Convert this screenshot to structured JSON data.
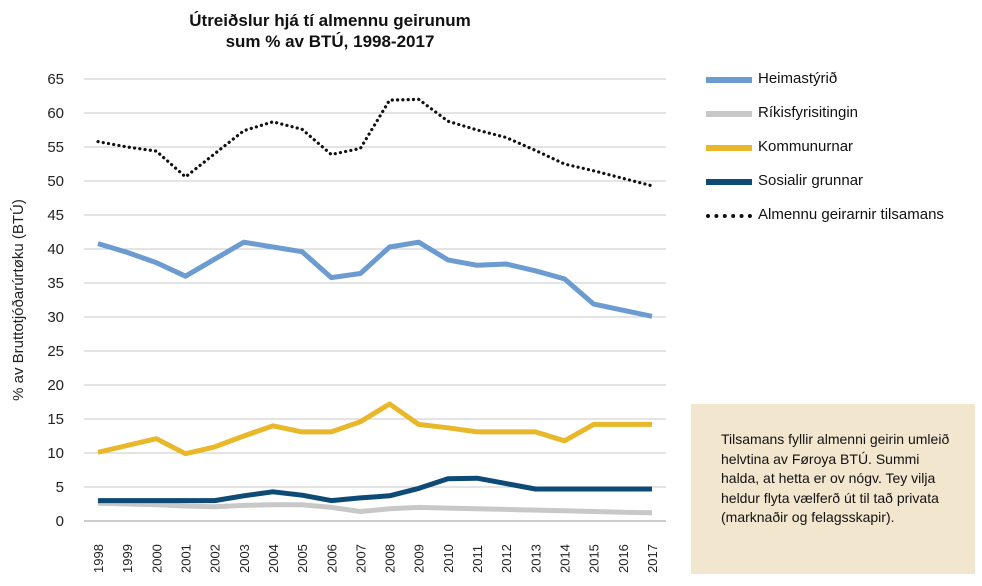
{
  "chart_data": {
    "type": "line",
    "title_lines": [
      "Útreiðslur hjá tí almennu geirunum",
      "sum % av BTÚ, 1998-2017"
    ],
    "ylabel": "% av Bruttotjóðarúrtøku (BTÚ)",
    "xlabel": "",
    "ylim": [
      0,
      65
    ],
    "yticks": [
      0,
      5,
      10,
      15,
      20,
      25,
      30,
      35,
      40,
      45,
      50,
      55,
      60,
      65
    ],
    "grid": "horizontal",
    "legend_position": "right",
    "x": [
      "1998",
      "1999",
      "2000",
      "2001",
      "2002",
      "2003",
      "2004",
      "2005",
      "2006",
      "2007",
      "2008",
      "2009",
      "2010",
      "2011",
      "2012",
      "2013",
      "2014",
      "2015",
      "2016",
      "2017"
    ],
    "series": [
      {
        "name": "Heimastýrið",
        "color": "#6b9bd1",
        "style": "solid",
        "values": [
          40.8,
          39.5,
          38.0,
          36.0,
          38.5,
          41.0,
          40.3,
          39.6,
          35.8,
          36.4,
          40.3,
          41.0,
          38.4,
          37.6,
          37.8,
          36.8,
          35.6,
          31.9,
          31.0,
          30.1
        ]
      },
      {
        "name": "Ríkisfyrisitingin",
        "color": "#c8c8c8",
        "style": "solid",
        "values": [
          2.6,
          2.5,
          2.4,
          2.2,
          2.1,
          2.3,
          2.4,
          2.4,
          2.0,
          1.4,
          1.8,
          2.0,
          1.9,
          1.8,
          1.7,
          1.6,
          1.5,
          1.4,
          1.3,
          1.2
        ]
      },
      {
        "name": "Kommunurnar",
        "color": "#e8b82a",
        "style": "solid",
        "values": [
          10.1,
          11.1,
          12.1,
          9.9,
          10.9,
          12.5,
          14.0,
          13.1,
          13.1,
          14.6,
          17.2,
          14.2,
          13.7,
          13.1,
          13.1,
          13.1,
          11.8,
          14.2,
          14.2,
          14.2
        ]
      },
      {
        "name": "Sosialir grunnar",
        "color": "#0d4a76",
        "style": "solid",
        "values": [
          3.0,
          3.0,
          3.0,
          3.0,
          3.0,
          3.7,
          4.3,
          3.8,
          3.0,
          3.4,
          3.7,
          4.8,
          6.2,
          6.3,
          5.5,
          4.7,
          4.7,
          4.7,
          4.7,
          4.7
        ]
      },
      {
        "name": "Almennu geirarnir tilsamans",
        "color": "#111111",
        "style": "dotted",
        "values": [
          55.8,
          55.0,
          54.4,
          50.6,
          54.0,
          57.4,
          58.7,
          57.6,
          53.9,
          54.8,
          61.9,
          62.0,
          58.8,
          57.5,
          56.4,
          54.5,
          52.5,
          51.5,
          50.4,
          49.3
        ]
      }
    ]
  },
  "note": {
    "text": "Tilsamans fyllir almenni geirin umleið helvtina av Føroya BTÚ. Summi halda, at hetta er ov nógv. Tey vilja heldur flyta vælferð út til tað privata (marknaðir og felagsskapir)."
  },
  "colors": {
    "note_background": "#f3e6ce",
    "grid": "#c8c8c8"
  }
}
